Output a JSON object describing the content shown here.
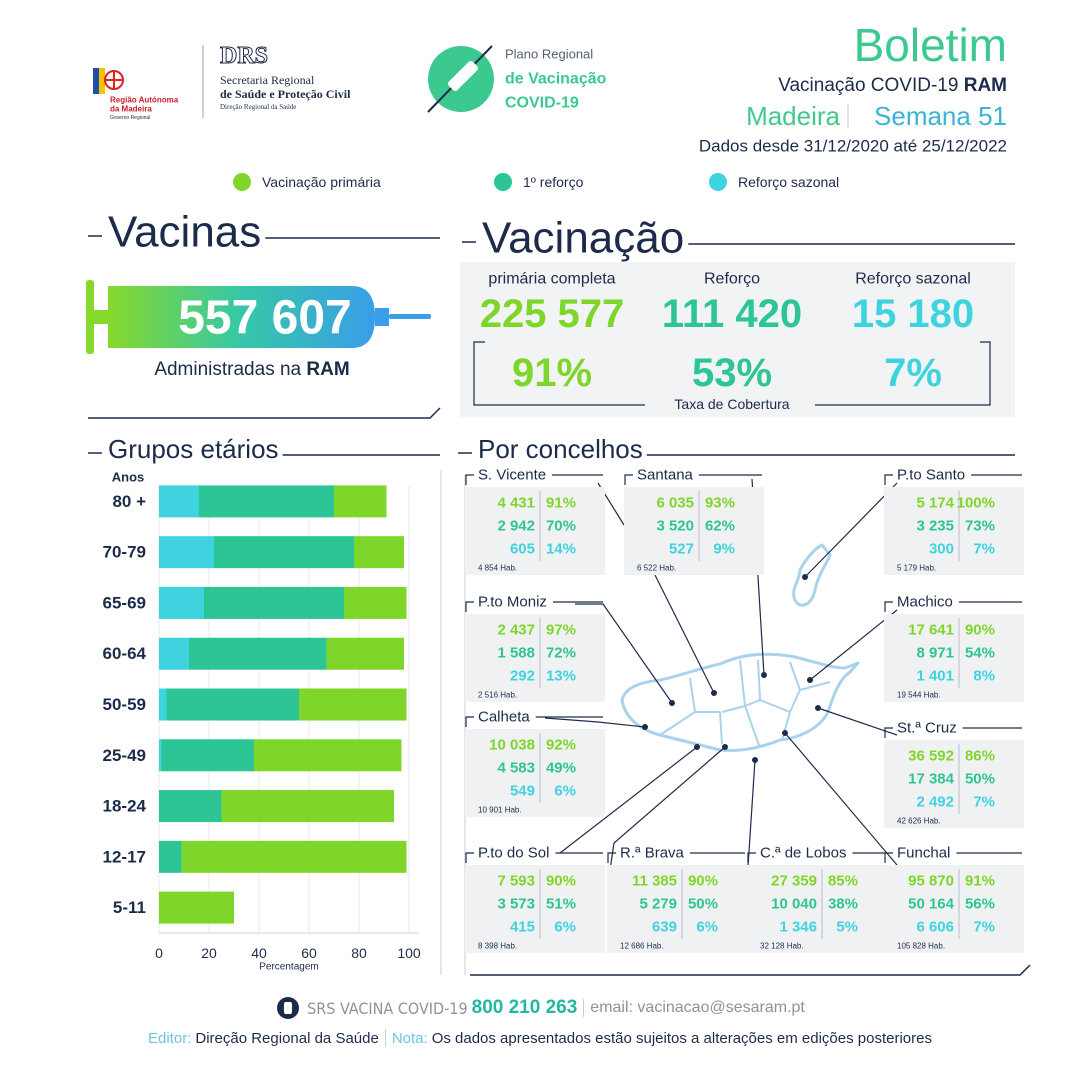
{
  "header": {
    "region_logo": [
      "Região Autónoma",
      "da Madeira",
      "Governo Regional"
    ],
    "drs_logo": {
      "acronym": "DRS",
      "lines": [
        "Secretaria Regional",
        "de Saúde e Proteção Civil",
        "Direção Regional da Saúde"
      ]
    },
    "plan_logo": [
      "Plano Regional",
      "de Vacinação",
      "COVID-19"
    ],
    "title": "Boletim",
    "subtitle": "Vacinação COVID-19",
    "subtitle_bold": "RAM",
    "region": "Madeira",
    "week": "Semana 51",
    "period": "Dados desde 31/12/2020 até 25/12/2022"
  },
  "vacinas": {
    "title": "Vacinas",
    "total": "557 607",
    "caption": "Administradas na",
    "caption_bold": "RAM"
  },
  "vacinacao": {
    "title": "Vacinação",
    "items": [
      {
        "label": "primária completa",
        "count": "225 577",
        "coverage": "91%"
      },
      {
        "label": "Reforço",
        "count": "111 420",
        "coverage": "53%"
      },
      {
        "label": "Reforço sazonal",
        "count": "15 180",
        "coverage": "7%"
      }
    ],
    "coverage_label": "Taxa de Cobertura"
  },
  "concelhos": {
    "title": "Por concelhos",
    "items": [
      {
        "name": "S. Vicente",
        "rows": [
          [
            "4 431",
            "91%"
          ],
          [
            "2 942",
            "70%"
          ],
          [
            "605",
            "14%"
          ]
        ],
        "population": "4 854 Hab."
      },
      {
        "name": "Santana",
        "rows": [
          [
            "6 035",
            "93%"
          ],
          [
            "3 520",
            "62%"
          ],
          [
            "527",
            "9%"
          ]
        ],
        "population": "6 522 Hab."
      },
      {
        "name": "P.to Santo",
        "rows": [
          [
            "5 174",
            "100%"
          ],
          [
            "3 235",
            "73%"
          ],
          [
            "300",
            "7%"
          ]
        ],
        "population": "5 179 Hab."
      },
      {
        "name": "P.to Moniz",
        "rows": [
          [
            "2 437",
            "97%"
          ],
          [
            "1 588",
            "72%"
          ],
          [
            "292",
            "13%"
          ]
        ],
        "population": "2 516 Hab."
      },
      {
        "name": "Machico",
        "rows": [
          [
            "17 641",
            "90%"
          ],
          [
            "8 971",
            "54%"
          ],
          [
            "1 401",
            "8%"
          ]
        ],
        "population": "19 544 Hab."
      },
      {
        "name": "Calheta",
        "rows": [
          [
            "10 038",
            "92%"
          ],
          [
            "4 583",
            "49%"
          ],
          [
            "549",
            "6%"
          ]
        ],
        "population": "10 901 Hab."
      },
      {
        "name": "St.ª Cruz",
        "rows": [
          [
            "36 592",
            "86%"
          ],
          [
            "17 384",
            "50%"
          ],
          [
            "2 492",
            "7%"
          ]
        ],
        "population": "42 626 Hab."
      },
      {
        "name": "P.to do Sol",
        "rows": [
          [
            "7 593",
            "90%"
          ],
          [
            "3 573",
            "51%"
          ],
          [
            "415",
            "6%"
          ]
        ],
        "population": "8 398 Hab."
      },
      {
        "name": "R.ª Brava",
        "rows": [
          [
            "11 385",
            "90%"
          ],
          [
            "5 279",
            "50%"
          ],
          [
            "639",
            "6%"
          ]
        ],
        "population": "12 686 Hab."
      },
      {
        "name": "C.ª de Lobos",
        "rows": [
          [
            "27 359",
            "85%"
          ],
          [
            "10 040",
            "38%"
          ],
          [
            "1 346",
            "5%"
          ]
        ],
        "population": "32 128 Hab."
      },
      {
        "name": "Funchal",
        "rows": [
          [
            "95 870",
            "91%"
          ],
          [
            "50 164",
            "56%"
          ],
          [
            "6 606",
            "7%"
          ]
        ],
        "population": "105 828 Hab."
      }
    ]
  },
  "chart_data": {
    "type": "bar",
    "orientation": "horizontal",
    "stacked": true,
    "title": "Grupos etários",
    "y_label": "Anos",
    "x_label": "Percentagem",
    "categories": [
      "80 +",
      "70-79",
      "65-69",
      "60-64",
      "50-59",
      "25-49",
      "18-24",
      "12-17",
      "5-11"
    ],
    "series": [
      {
        "name": "Vacinação primária",
        "color": "#7fd62a",
        "values": [
          21,
          20,
          25,
          31,
          43,
          59,
          69,
          90,
          30
        ]
      },
      {
        "name": "1º reforço",
        "color": "#2ec596",
        "values": [
          54,
          56,
          56,
          55,
          53,
          37,
          25,
          9,
          0
        ]
      },
      {
        "name": "Reforço sazonal",
        "color": "#3fd3df",
        "values": [
          16,
          22,
          18,
          12,
          3,
          1,
          0,
          0,
          0
        ]
      }
    ],
    "xlim": [
      0,
      104
    ],
    "xticks": [
      0,
      20,
      40,
      60,
      80,
      100
    ],
    "grid": true
  },
  "footer": {
    "hotline_label": "SRS VACINA COVID-19",
    "hotline": "800 210 263",
    "email": "email: vacinacao@sesaram.pt",
    "editor_label": "Editor:",
    "editor": "Direção Regional da Saúde",
    "note_label": "Nota:",
    "note": "Os dados apresentados estão sujeitos a alterações em edições posteriores"
  }
}
